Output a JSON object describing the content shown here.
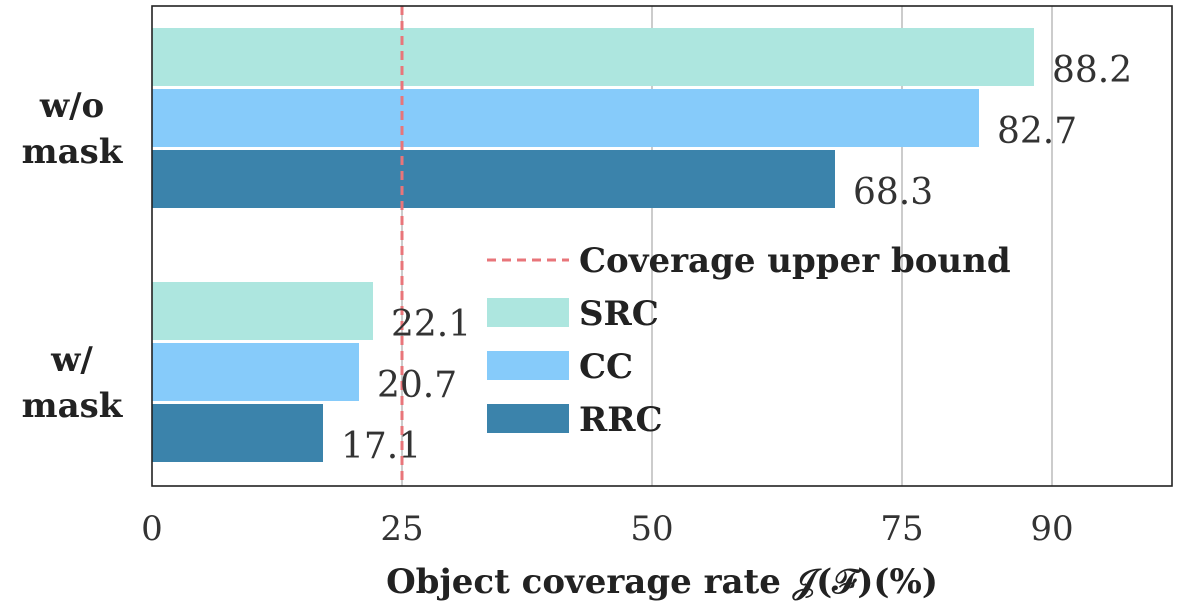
{
  "chart_data": {
    "type": "bar",
    "orientation": "horizontal",
    "categories": [
      "w/o\nmask",
      "w/\nmask"
    ],
    "series": [
      {
        "name": "SRC",
        "color": "#ade6df",
        "values": [
          88.2,
          22.1
        ]
      },
      {
        "name": "CC",
        "color": "#86cbfa",
        "values": [
          82.7,
          20.7
        ]
      },
      {
        "name": "RRC",
        "color": "#3b83ab",
        "values": [
          68.3,
          17.1
        ]
      }
    ],
    "value_labels": [
      [
        "88.2",
        "22.1"
      ],
      [
        "82.7",
        "20.7"
      ],
      [
        "68.3",
        "17.1"
      ]
    ],
    "xlabel": "Object coverage rate 𝒥(ℱ)(%)",
    "ylabel": "",
    "xlim": [
      0,
      102
    ],
    "xticks": [
      0,
      25,
      50,
      75,
      90
    ],
    "xtick_labels": [
      "0",
      "25",
      "50",
      "75",
      "90"
    ],
    "grid": "vertical",
    "reference_line": {
      "name": "Coverage upper bound",
      "value": 25,
      "color": "#e8757a",
      "style": "dashed"
    },
    "legend": {
      "placement": "center-right",
      "entries": [
        "Coverage upper bound",
        "SRC",
        "CC",
        "RRC"
      ]
    }
  }
}
